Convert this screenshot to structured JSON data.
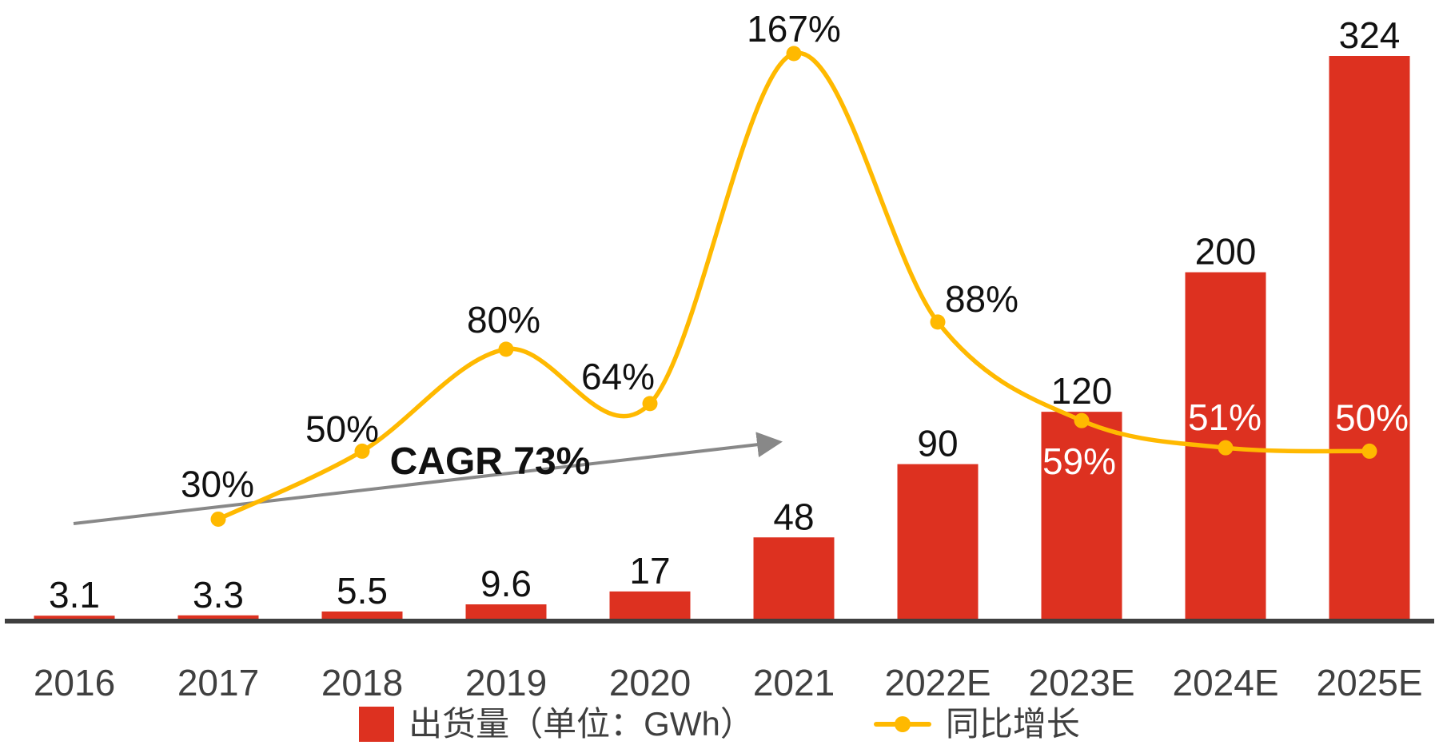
{
  "chart_data": {
    "type": "combo-bar-line",
    "categories": [
      "2016",
      "2017",
      "2018",
      "2019",
      "2020",
      "2021",
      "2022E",
      "2023E",
      "2024E",
      "2025E"
    ],
    "series": [
      {
        "name": "出货量（单位：GWh）",
        "type": "bar",
        "color": "#DD3120",
        "values": [
          3.1,
          3.3,
          5.5,
          9.6,
          17,
          48,
          90,
          120,
          200,
          324
        ],
        "labels": [
          "3.1",
          "3.3",
          "5.5",
          "9.6",
          "17",
          "48",
          "90",
          "120",
          "200",
          "324"
        ]
      },
      {
        "name": "同比增长",
        "type": "line",
        "color": "#FFB900",
        "values": [
          null,
          30,
          50,
          80,
          64,
          167,
          88,
          59,
          51,
          50
        ],
        "labels": [
          null,
          "30%",
          "50%",
          "80%",
          "64%",
          "167%",
          "88%",
          "59%",
          "51%",
          "50%"
        ],
        "label_colors": [
          null,
          "#111111",
          "#111111",
          "#111111",
          "#111111",
          "#111111",
          "#111111",
          "#ffffff",
          "#ffffff",
          "#ffffff"
        ]
      }
    ],
    "annotation": {
      "text": "CAGR 73%",
      "color": "#111111",
      "arrow_color": "#888888"
    },
    "axis": {
      "baseline_color": "#3f3f3f",
      "category_label_color": "#404040",
      "value_label_color": "#111111"
    },
    "layout_hints": {
      "bar_ylim": [
        0,
        350
      ],
      "pct_ylim": [
        0,
        180
      ],
      "grid": false,
      "legend_position": "bottom"
    }
  },
  "legend": {
    "items": [
      {
        "label": "出货量（单位：GWh）",
        "marker": "square",
        "color": "#DD3120"
      },
      {
        "label": "同比增长",
        "marker": "line-dot",
        "color": "#FFB900"
      }
    ]
  }
}
